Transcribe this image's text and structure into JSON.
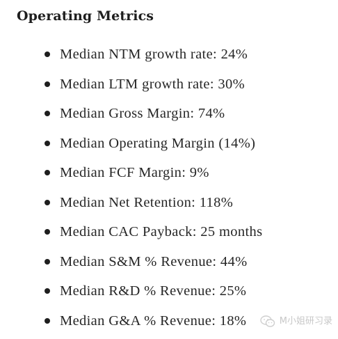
{
  "section": {
    "title": "Operating Metrics"
  },
  "metrics": [
    {
      "text": "Median NTM growth rate: 24%"
    },
    {
      "text": "Median LTM growth rate: 30%"
    },
    {
      "text": "Median Gross Margin: 74%"
    },
    {
      "text": "Median Operating Margin (14%)"
    },
    {
      "text": "Median FCF Margin: 9%"
    },
    {
      "text": "Median Net Retention: 118%"
    },
    {
      "text": "Median CAC Payback: 25 months"
    },
    {
      "text": "Median S&M % Revenue: 44%"
    },
    {
      "text": "Median R&D % Revenue: 25%"
    },
    {
      "text": "Median G&A % Revenue: 18%"
    }
  ],
  "watermark": {
    "icon": "wechat-icon",
    "text": "M小姐研习录"
  }
}
